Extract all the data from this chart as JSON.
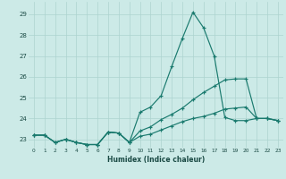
{
  "xlabel": "Humidex (Indice chaleur)",
  "bg_color": "#cceae7",
  "grid_color": "#add4d0",
  "line_color": "#1a7a6e",
  "xlim": [
    -0.5,
    23.5
  ],
  "ylim": [
    22.6,
    29.6
  ],
  "xticks": [
    0,
    1,
    2,
    3,
    4,
    5,
    6,
    7,
    8,
    9,
    10,
    11,
    12,
    13,
    14,
    15,
    16,
    17,
    18,
    19,
    20,
    21,
    22,
    23
  ],
  "yticks": [
    23,
    24,
    25,
    26,
    27,
    28,
    29
  ],
  "series1_x": [
    0,
    1,
    2,
    3,
    4,
    5,
    6,
    7,
    8,
    9,
    10,
    11,
    12,
    13,
    14,
    15,
    16,
    17,
    18,
    19,
    20,
    21,
    22,
    23
  ],
  "series1_y": [
    23.2,
    23.2,
    22.85,
    23.0,
    22.85,
    22.75,
    22.75,
    23.35,
    23.3,
    22.85,
    24.3,
    24.55,
    25.1,
    26.5,
    27.85,
    29.1,
    28.35,
    27.0,
    24.05,
    23.9,
    23.9,
    24.0,
    24.0,
    23.9
  ],
  "series2_x": [
    0,
    1,
    2,
    3,
    4,
    5,
    6,
    7,
    8,
    9,
    10,
    11,
    12,
    13,
    14,
    15,
    16,
    17,
    18,
    19,
    20,
    21,
    22,
    23
  ],
  "series2_y": [
    23.2,
    23.2,
    22.85,
    23.0,
    22.85,
    22.75,
    22.75,
    23.35,
    23.3,
    22.85,
    23.4,
    23.6,
    23.95,
    24.2,
    24.5,
    24.9,
    25.25,
    25.55,
    25.85,
    25.9,
    25.9,
    24.0,
    24.0,
    23.9
  ],
  "series3_x": [
    0,
    1,
    2,
    3,
    4,
    5,
    6,
    7,
    8,
    9,
    10,
    11,
    12,
    13,
    14,
    15,
    16,
    17,
    18,
    19,
    20,
    21,
    22,
    23
  ],
  "series3_y": [
    23.2,
    23.2,
    22.85,
    23.0,
    22.85,
    22.75,
    22.75,
    23.35,
    23.3,
    22.85,
    23.15,
    23.25,
    23.45,
    23.65,
    23.85,
    24.0,
    24.1,
    24.25,
    24.45,
    24.5,
    24.55,
    24.0,
    24.0,
    23.9
  ]
}
